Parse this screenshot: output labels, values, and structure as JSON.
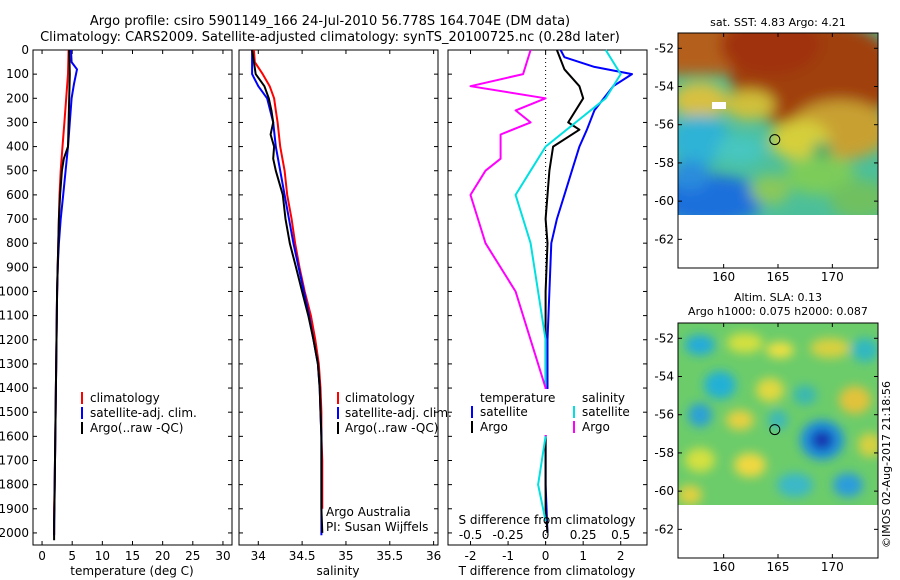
{
  "header": {
    "line1": "Argo profile: csiro 5901149_166 24-Jul-2010 56.778S 164.704E (DM data)",
    "line2": "Climatology: CARS2009. Satellite-adjusted climatology: synTS_20100725.nc (0.28d later)"
  },
  "watermark": "©IMOS 02-Aug-2017 21:18:56",
  "credit": {
    "line1": "Argo Australia",
    "line2": "PI: Susan Wijffels"
  },
  "colors": {
    "climatology": "#ff0000",
    "satellite": "#0000ff",
    "argo": "#000000",
    "argo_s": "#ff00ff",
    "satellite_s": "#00e0e0"
  },
  "chart_data": [
    {
      "type": "line",
      "xlabel": "temperature (deg C)",
      "x_ticks": [
        0,
        5,
        10,
        15,
        20,
        25,
        30
      ],
      "xlim": [
        -1.5,
        31.5
      ],
      "y_ticks": [
        0,
        100,
        200,
        300,
        400,
        500,
        600,
        700,
        800,
        900,
        1000,
        1100,
        1200,
        1300,
        1400,
        1500,
        1600,
        1700,
        1800,
        1900,
        2000
      ],
      "ylim": [
        2050,
        0
      ],
      "y_reversed": true,
      "legend": [
        "climatology",
        "satellite-adj. clim.",
        "Argo(..raw -QC)"
      ],
      "series": [
        {
          "name": "climatology",
          "color": "#ff0000",
          "points": [
            [
              4.4,
              0
            ],
            [
              4.3,
              100
            ],
            [
              4.0,
              200
            ],
            [
              3.7,
              300
            ],
            [
              3.4,
              400
            ],
            [
              3.1,
              500
            ],
            [
              2.9,
              600
            ],
            [
              2.8,
              700
            ],
            [
              2.7,
              800
            ],
            [
              2.6,
              900
            ],
            [
              2.5,
              1000
            ],
            [
              2.45,
              1100
            ],
            [
              2.4,
              1200
            ],
            [
              2.35,
              1300
            ],
            [
              2.3,
              1400
            ],
            [
              2.25,
              1500
            ],
            [
              2.2,
              1600
            ],
            [
              2.15,
              1700
            ],
            [
              2.1,
              1800
            ],
            [
              2.0,
              1900
            ],
            [
              2.0,
              2010
            ]
          ]
        },
        {
          "name": "satellite-adj. clim.",
          "color": "#0000ff",
          "points": [
            [
              4.8,
              0
            ],
            [
              4.9,
              50
            ],
            [
              5.8,
              80
            ],
            [
              5.3,
              140
            ],
            [
              4.9,
              200
            ],
            [
              4.6,
              300
            ],
            [
              4.3,
              400
            ],
            [
              3.9,
              500
            ],
            [
              3.5,
              600
            ],
            [
              3.1,
              700
            ],
            [
              2.8,
              800
            ],
            [
              2.6,
              900
            ],
            [
              2.5,
              1000
            ],
            [
              2.45,
              1100
            ],
            [
              2.4,
              1200
            ],
            [
              2.35,
              1300
            ],
            [
              2.3,
              1400
            ],
            [
              2.25,
              1500
            ],
            [
              2.2,
              1600
            ],
            [
              2.15,
              1700
            ],
            [
              2.1,
              1800
            ],
            [
              2.05,
              1900
            ],
            [
              2.0,
              2010
            ]
          ]
        },
        {
          "name": "Argo(..raw -QC)",
          "color": "#000000",
          "points": [
            [
              4.5,
              0
            ],
            [
              4.6,
              100
            ],
            [
              4.5,
              200
            ],
            [
              4.4,
              300
            ],
            [
              4.3,
              400
            ],
            [
              3.6,
              450
            ],
            [
              3.3,
              500
            ],
            [
              3.0,
              600
            ],
            [
              2.8,
              700
            ],
            [
              2.7,
              800
            ],
            [
              2.6,
              900
            ],
            [
              2.5,
              1000
            ],
            [
              2.45,
              1100
            ],
            [
              2.4,
              1200
            ],
            [
              2.35,
              1300
            ],
            [
              2.3,
              1400
            ],
            [
              2.25,
              1500
            ],
            [
              2.2,
              1600
            ],
            [
              2.15,
              1700
            ],
            [
              2.1,
              1800
            ],
            [
              2.05,
              1900
            ],
            [
              2.0,
              1950
            ],
            [
              2.0,
              2030
            ]
          ]
        }
      ]
    },
    {
      "type": "line",
      "xlabel": "salinity",
      "x_ticks": [
        34,
        34.5,
        35,
        35.5,
        36
      ],
      "xlim": [
        33.78,
        36.05
      ],
      "y_reversed": true,
      "legend": [
        "climatology",
        "satellite-adj. clim.",
        "Argo(..raw -QC)"
      ],
      "series": [
        {
          "name": "climatology",
          "color": "#ff0000",
          "points": [
            [
              33.95,
              0
            ],
            [
              33.96,
              50
            ],
            [
              34.05,
              100
            ],
            [
              34.13,
              150
            ],
            [
              34.18,
              200
            ],
            [
              34.2,
              250
            ],
            [
              34.22,
              300
            ],
            [
              34.25,
              400
            ],
            [
              34.3,
              500
            ],
            [
              34.33,
              600
            ],
            [
              34.38,
              700
            ],
            [
              34.42,
              800
            ],
            [
              34.47,
              900
            ],
            [
              34.53,
              1000
            ],
            [
              34.6,
              1100
            ],
            [
              34.65,
              1200
            ],
            [
              34.69,
              1300
            ],
            [
              34.71,
              1400
            ],
            [
              34.72,
              1500
            ],
            [
              34.72,
              1600
            ],
            [
              34.73,
              1700
            ],
            [
              34.73,
              1800
            ],
            [
              34.73,
              1900
            ]
          ]
        },
        {
          "name": "satellite-adj. clim.",
          "color": "#0000ff",
          "points": [
            [
              33.93,
              0
            ],
            [
              33.93,
              100
            ],
            [
              34.0,
              150
            ],
            [
              34.1,
              200
            ],
            [
              34.17,
              300
            ],
            [
              34.2,
              400
            ],
            [
              34.25,
              500
            ],
            [
              34.3,
              600
            ],
            [
              34.35,
              700
            ],
            [
              34.4,
              800
            ],
            [
              34.46,
              900
            ],
            [
              34.52,
              1000
            ],
            [
              34.58,
              1100
            ],
            [
              34.63,
              1200
            ],
            [
              34.68,
              1300
            ],
            [
              34.7,
              1400
            ],
            [
              34.71,
              1500
            ],
            [
              34.72,
              1600
            ],
            [
              34.72,
              1700
            ],
            [
              34.72,
              1800
            ],
            [
              34.72,
              1900
            ],
            [
              34.72,
              2010
            ]
          ]
        },
        {
          "name": "Argo(..raw -QC)",
          "color": "#000000",
          "points": [
            [
              33.93,
              0
            ],
            [
              33.97,
              100
            ],
            [
              34.07,
              150
            ],
            [
              34.12,
              200
            ],
            [
              34.15,
              250
            ],
            [
              34.17,
              300
            ],
            [
              34.14,
              350
            ],
            [
              34.18,
              400
            ],
            [
              34.17,
              450
            ],
            [
              34.2,
              500
            ],
            [
              34.24,
              550
            ],
            [
              34.28,
              600
            ],
            [
              34.31,
              700
            ],
            [
              34.36,
              800
            ],
            [
              34.43,
              900
            ],
            [
              34.5,
              1000
            ],
            [
              34.57,
              1100
            ],
            [
              34.63,
              1200
            ],
            [
              34.68,
              1300
            ],
            [
              34.7,
              1400
            ],
            [
              34.71,
              1500
            ],
            [
              34.72,
              1600
            ],
            [
              34.72,
              1700
            ],
            [
              34.72,
              1800
            ],
            [
              34.72,
              1900
            ],
            [
              34.73,
              2000
            ]
          ]
        }
      ]
    },
    {
      "type": "line",
      "xlabel": "T difference from climatology",
      "xlabel2": "S difference from climatology",
      "x_ticks": [
        -2,
        -1,
        0,
        1,
        2
      ],
      "x_ticks_top": [
        -0.5,
        -0.25,
        0,
        0.25,
        0.5
      ],
      "xlim": [
        -2.6,
        2.7
      ],
      "y_reversed": true,
      "legend_temperature_title": "temperature",
      "legend_salinity_title": "salinity",
      "legend": [
        "satellite",
        "Argo",
        "satellite",
        "Argo"
      ],
      "series": [
        {
          "name": "satellite",
          "group": "temperature",
          "color": "#0000ff",
          "points": [
            [
              0.4,
              0
            ],
            [
              0.5,
              30
            ],
            [
              1.3,
              70
            ],
            [
              2.3,
              100
            ],
            [
              1.8,
              150
            ],
            [
              1.3,
              250
            ],
            [
              1.1,
              330
            ],
            [
              0.9,
              400
            ],
            [
              0.7,
              500
            ],
            [
              0.5,
              600
            ],
            [
              0.3,
              700
            ],
            [
              0.15,
              800
            ],
            [
              0.1,
              1000
            ],
            [
              0.05,
              1200
            ],
            [
              0.05,
              1400
            ],
            [
              0.0,
              1600
            ],
            [
              0.0,
              1800
            ],
            [
              0.05,
              2000
            ]
          ]
        },
        {
          "name": "Argo",
          "group": "temperature",
          "color": "#000000",
          "points": [
            [
              0.3,
              0
            ],
            [
              0.5,
              80
            ],
            [
              0.9,
              150
            ],
            [
              1.0,
              200
            ],
            [
              0.6,
              300
            ],
            [
              0.9,
              330
            ],
            [
              0.2,
              400
            ],
            [
              0.1,
              500
            ],
            [
              0.05,
              600
            ],
            [
              0.0,
              700
            ],
            [
              0.05,
              800
            ],
            [
              0.0,
              1000
            ],
            [
              0.0,
              1300
            ],
            [
              0.0,
              1600
            ],
            [
              0.0,
              1900
            ],
            [
              0.05,
              2000
            ]
          ]
        },
        {
          "name": "satellite",
          "group": "salinity",
          "color": "#00e0e0",
          "points": [
            [
              0.4,
              0
            ],
            [
              0.5,
              100
            ],
            [
              0.4,
              200
            ],
            [
              0.2,
              300
            ],
            [
              0.0,
              400
            ],
            [
              -0.1,
              500
            ],
            [
              -0.2,
              600
            ],
            [
              -0.15,
              700
            ],
            [
              -0.1,
              800
            ],
            [
              -0.05,
              1000
            ],
            [
              0.0,
              1200
            ],
            [
              0.0,
              1400
            ],
            [
              0.0,
              1600
            ],
            [
              -0.05,
              1800
            ],
            [
              0.0,
              1950
            ]
          ]
        },
        {
          "name": "Argo",
          "group": "salinity",
          "color": "#ff00ff",
          "points": [
            [
              -0.1,
              0
            ],
            [
              -0.15,
              100
            ],
            [
              -0.5,
              150
            ],
            [
              0.0,
              200
            ],
            [
              -0.2,
              250
            ],
            [
              -0.1,
              300
            ],
            [
              -0.3,
              350
            ],
            [
              -0.3,
              450
            ],
            [
              -0.4,
              500
            ],
            [
              -0.5,
              600
            ],
            [
              -0.45,
              700
            ],
            [
              -0.4,
              800
            ],
            [
              -0.2,
              1000
            ],
            [
              -0.1,
              1200
            ],
            [
              0.0,
              1400
            ],
            [
              0.0,
              1600
            ]
          ]
        }
      ]
    },
    {
      "type": "heatmap",
      "title": "sat. SST: 4.83 Argo: 4.21",
      "x_ticks": [
        160,
        165,
        170
      ],
      "y_ticks": [
        -52,
        -54,
        -56,
        -58,
        -60,
        -62
      ],
      "xlim": [
        155.8,
        174.2
      ],
      "ylim": [
        -63.5,
        -51.2
      ],
      "data_ylim_min": -60,
      "argo_position": [
        164.704,
        -56.778
      ]
    },
    {
      "type": "heatmap",
      "title_line1": "Altim. SLA: 0.13",
      "title_line2": "Argo h1000: 0.075 h2000: 0.087",
      "x_ticks": [
        160,
        165,
        170
      ],
      "y_ticks": [
        -52,
        -54,
        -56,
        -58,
        -60,
        -62
      ],
      "xlim": [
        155.8,
        174.2
      ],
      "ylim": [
        -63.5,
        -51.2
      ],
      "data_ylim_min": -60,
      "argo_position": [
        164.704,
        -56.778
      ]
    }
  ]
}
